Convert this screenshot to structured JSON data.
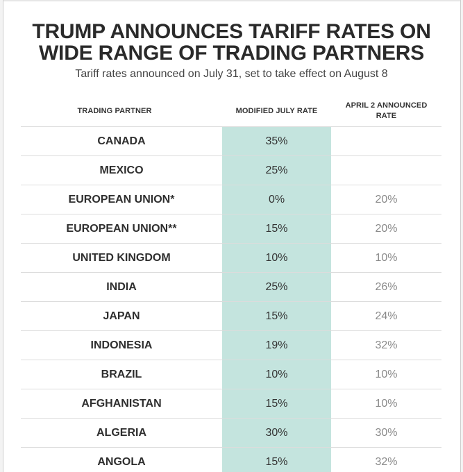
{
  "title": {
    "line1": "TRUMP ANNOUNCES TARIFF RATES ON",
    "line2": "WIDE RANGE OF TRADING PARTNERS"
  },
  "subtitle": "Tariff rates announced on July 31, set to take effect on August 8",
  "columns": {
    "partner": "TRADING PARTNER",
    "july": "MODIFIED JULY RATE",
    "april_line1": "APRIL 2 ANNOUNCED",
    "april_line2": "RATE"
  },
  "rows": [
    {
      "partner": "CANADA",
      "july": "35%",
      "april": ""
    },
    {
      "partner": "MEXICO",
      "july": "25%",
      "april": ""
    },
    {
      "partner": "EUROPEAN UNION*",
      "july": "0%",
      "april": "20%"
    },
    {
      "partner": "EUROPEAN UNION**",
      "july": "15%",
      "april": "20%"
    },
    {
      "partner": "UNITED KINGDOM",
      "july": "10%",
      "april": "10%"
    },
    {
      "partner": "INDIA",
      "july": "25%",
      "april": "26%"
    },
    {
      "partner": "JAPAN",
      "july": "15%",
      "april": "24%"
    },
    {
      "partner": "INDONESIA",
      "july": "19%",
      "april": "32%"
    },
    {
      "partner": "BRAZIL",
      "july": "10%",
      "april": "10%"
    },
    {
      "partner": "AFGHANISTAN",
      "july": "15%",
      "april": "10%"
    },
    {
      "partner": "ALGERIA",
      "july": "30%",
      "april": "30%"
    },
    {
      "partner": "ANGOLA",
      "july": "15%",
      "april": "32%"
    }
  ],
  "colors": {
    "highlight": "#c4e4de",
    "text": "#2b2b2b",
    "muted": "#8a8a8a"
  }
}
